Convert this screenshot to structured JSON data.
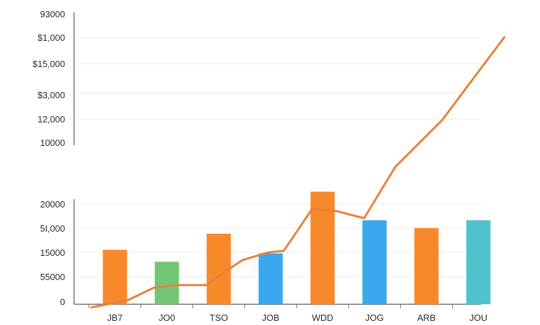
{
  "chart_data": {
    "type": "bar",
    "title": "",
    "xlabel": "",
    "ylabel": "",
    "grid": true,
    "legend": "none",
    "categories": [
      "JB7",
      "JO0",
      "TSO",
      "JOB",
      "WDD",
      "JOG",
      "ARB",
      "JOU"
    ],
    "upper_axis_ticks": [
      "93000",
      "$1,000",
      "$15,000",
      "$3,000",
      "12,000",
      "10000"
    ],
    "lower_axis_ticks": [
      "20000",
      "5I,000",
      "15000",
      "55000",
      "0"
    ],
    "bar_scale": [
      0,
      20000
    ],
    "bars": [
      {
        "category": "JB7",
        "value": 10500,
        "color": "#f7892b"
      },
      {
        "category": "JO0",
        "value": 8200,
        "color": "#72c574"
      },
      {
        "category": "TSO",
        "value": 13600,
        "color": "#f7892b"
      },
      {
        "category": "JOB",
        "value": 9800,
        "color": "#3aa8ec"
      },
      {
        "category": "WDD",
        "value": 21700,
        "color": "#f7892b"
      },
      {
        "category": "JOG",
        "value": 16200,
        "color": "#3aa8ec"
      },
      {
        "category": "ARB",
        "value": 14700,
        "color": "#f7892b"
      },
      {
        "category": "JOU",
        "value": 16200,
        "color": "#4fc3cb"
      }
    ],
    "line": {
      "color": "#e8803c",
      "points": [
        {
          "x": -0.45,
          "y": -600
        },
        {
          "x": 0.25,
          "y": 800
        },
        {
          "x": 0.75,
          "y": 3200
        },
        {
          "x": 1.2,
          "y": 3700
        },
        {
          "x": 1.75,
          "y": 3700
        },
        {
          "x": 2.45,
          "y": 8500
        },
        {
          "x": 2.95,
          "y": 10000
        },
        {
          "x": 3.25,
          "y": 10300
        },
        {
          "x": 3.8,
          "y": 18400
        },
        {
          "x": 4.25,
          "y": 18000
        },
        {
          "x": 4.8,
          "y": 16600
        },
        {
          "x": 5.4,
          "y": 26500
        },
        {
          "x": 6.3,
          "y": 35500
        },
        {
          "x": 7.5,
          "y": 51500
        }
      ]
    }
  }
}
